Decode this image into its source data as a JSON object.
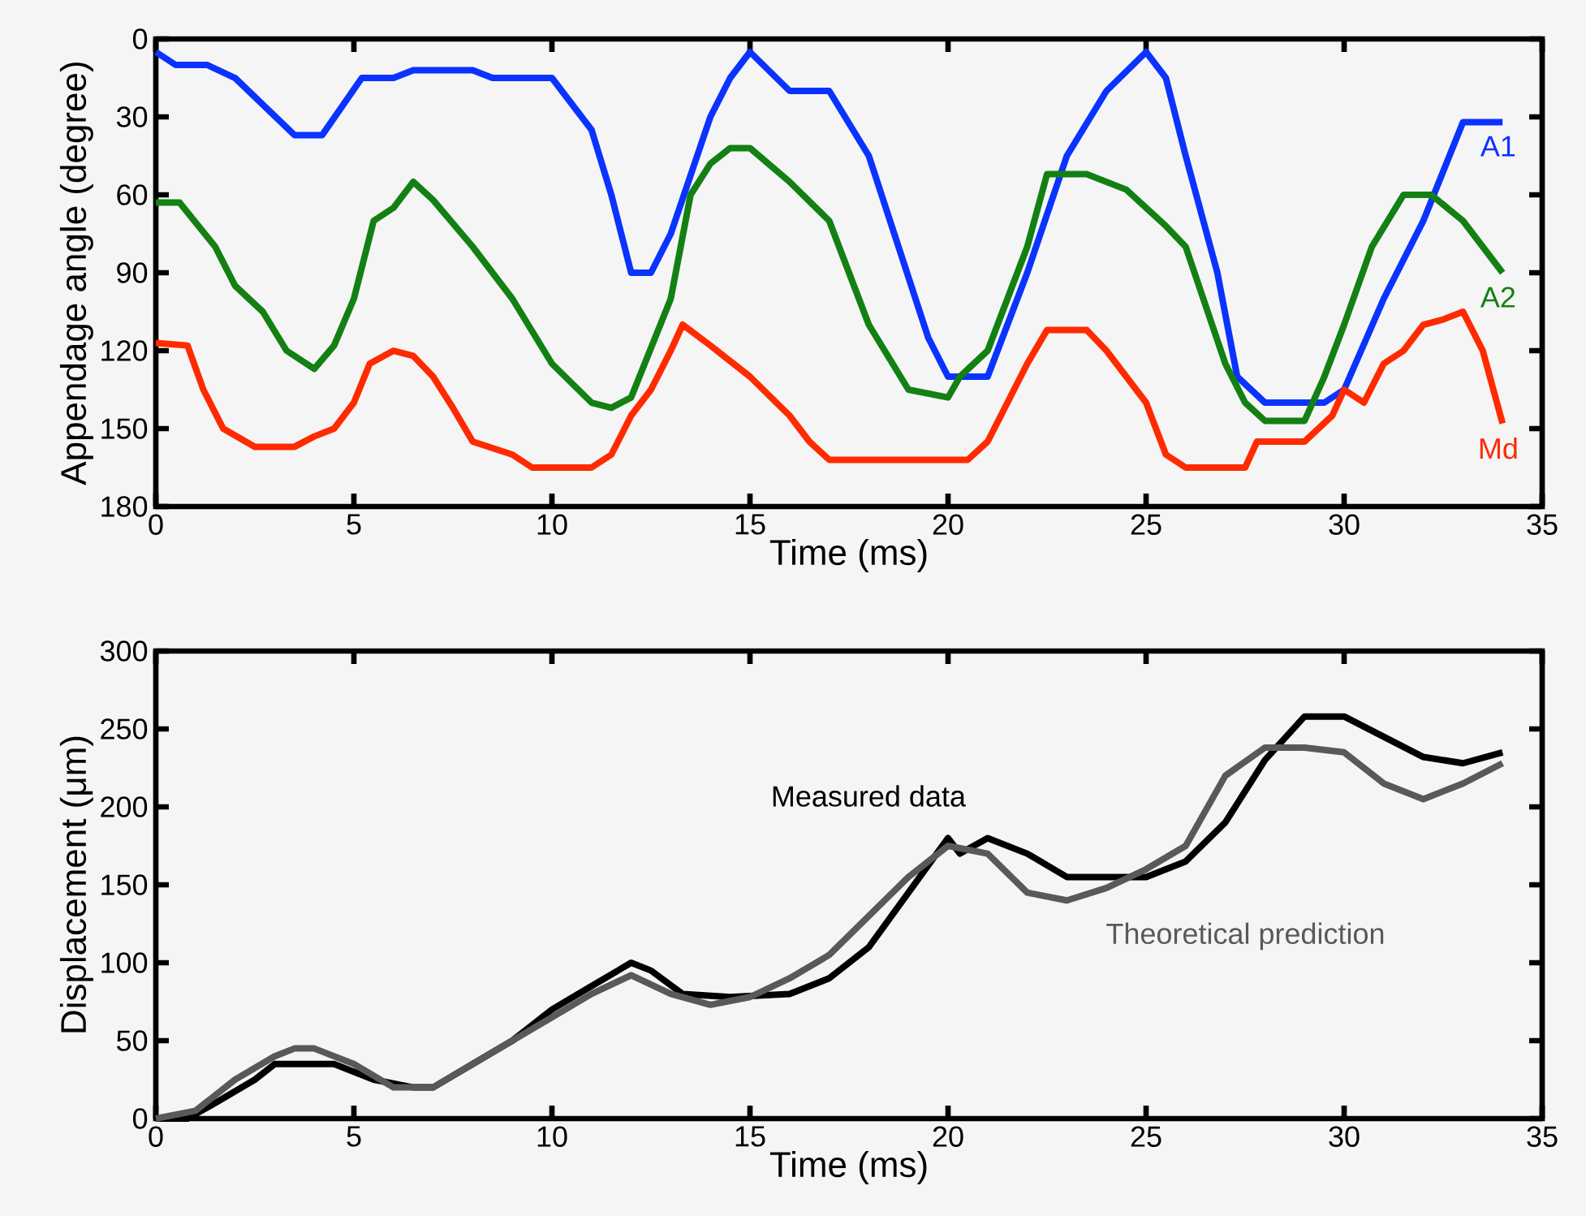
{
  "chart_data": [
    {
      "type": "line",
      "xlabel": "Time (ms)",
      "ylabel": "Appendage angle (degree)",
      "xlim": [
        0,
        35
      ],
      "xticks": [
        0,
        5,
        10,
        15,
        20,
        25,
        30,
        35
      ],
      "ylim": [
        180,
        0
      ],
      "yticks": [
        0,
        30,
        60,
        90,
        120,
        150,
        180
      ],
      "grid": false,
      "series": [
        {
          "name": "A1",
          "color": "#0a33ff",
          "x": [
            0,
            0.5,
            1.3,
            2,
            3.5,
            4.2,
            5.2,
            6,
            6.5,
            8,
            8.5,
            10,
            11,
            11.5,
            12,
            12.5,
            13,
            14,
            14.5,
            15,
            16,
            17,
            18,
            19.5,
            20,
            21,
            22,
            23,
            24,
            25,
            25.5,
            26,
            26.8,
            27.3,
            28,
            29,
            29.5,
            30,
            31,
            32,
            33,
            34
          ],
          "values": [
            5,
            10,
            10,
            15,
            37,
            37,
            15,
            15,
            12,
            12,
            15,
            15,
            35,
            60,
            90,
            90,
            75,
            30,
            15,
            5,
            20,
            20,
            45,
            115,
            130,
            130,
            90,
            45,
            20,
            5,
            15,
            45,
            90,
            130,
            140,
            140,
            140,
            135,
            100,
            70,
            32,
            32
          ]
        },
        {
          "name": "A2",
          "color": "#138013",
          "x": [
            0,
            0.6,
            1.5,
            2,
            2.7,
            3.3,
            4,
            4.5,
            5,
            5.5,
            6,
            6.5,
            7,
            8,
            9,
            10,
            11,
            11.5,
            12,
            13,
            13.5,
            14,
            14.5,
            15,
            16,
            17,
            17.5,
            18,
            19,
            20,
            20.3,
            21,
            22,
            22.5,
            23.5,
            24.5,
            25.5,
            26,
            27,
            27.5,
            28,
            29,
            29.5,
            30,
            30.7,
            31.5,
            32.2,
            33,
            33.5,
            34
          ],
          "values": [
            63,
            63,
            80,
            95,
            105,
            120,
            127,
            118,
            100,
            70,
            65,
            55,
            62,
            80,
            100,
            125,
            140,
            142,
            138,
            100,
            60,
            48,
            42,
            42,
            55,
            70,
            90,
            110,
            135,
            138,
            130,
            120,
            80,
            52,
            52,
            58,
            72,
            80,
            125,
            140,
            147,
            147,
            130,
            110,
            80,
            60,
            60,
            70,
            80,
            90
          ]
        },
        {
          "name": "Md",
          "color": "#ff2a00",
          "x": [
            0,
            0.8,
            1.2,
            1.7,
            2.5,
            3.5,
            4,
            4.5,
            5,
            5.4,
            6,
            6.5,
            7,
            7.5,
            8,
            9,
            9.5,
            11,
            11.5,
            12,
            12.5,
            13,
            13.3,
            14,
            15,
            16,
            16.5,
            17,
            19,
            20.5,
            21,
            21.5,
            22,
            22.5,
            23.5,
            24,
            25,
            25.5,
            26,
            27.5,
            27.8,
            29,
            29.7,
            30,
            30.5,
            31,
            31.5,
            32,
            32.5,
            33,
            33.5,
            34
          ],
          "values": [
            117,
            118,
            135,
            150,
            157,
            157,
            153,
            150,
            140,
            125,
            120,
            122,
            130,
            142,
            155,
            160,
            165,
            165,
            160,
            145,
            135,
            120,
            110,
            118,
            130,
            145,
            155,
            162,
            162,
            162,
            155,
            140,
            125,
            112,
            112,
            120,
            140,
            160,
            165,
            165,
            155,
            155,
            145,
            135,
            140,
            125,
            120,
            110,
            108,
            105,
            120,
            148
          ]
        }
      ]
    },
    {
      "type": "line",
      "xlabel": "Time (ms)",
      "ylabel": "Displacement (μm)",
      "xlim": [
        0,
        35
      ],
      "xticks": [
        0,
        5,
        10,
        15,
        20,
        25,
        30,
        35
      ],
      "ylim": [
        0,
        300
      ],
      "yticks": [
        0,
        50,
        100,
        150,
        200,
        250,
        300
      ],
      "grid": false,
      "series": [
        {
          "name": "Measured data",
          "color": "#000000",
          "x": [
            0,
            0.8,
            1.5,
            2.5,
            3,
            4.5,
            5.5,
            6.5,
            7,
            8,
            9,
            10,
            11,
            12,
            12.5,
            13.3,
            14.5,
            16,
            17,
            18,
            19,
            20,
            20.3,
            21,
            22,
            23,
            25,
            26,
            27,
            28,
            29,
            30,
            31,
            32,
            33,
            34
          ],
          "values": [
            0,
            0,
            10,
            25,
            35,
            35,
            25,
            20,
            20,
            35,
            50,
            70,
            85,
            100,
            95,
            80,
            78,
            80,
            90,
            110,
            145,
            180,
            170,
            180,
            170,
            155,
            155,
            165,
            190,
            230,
            258,
            258,
            245,
            232,
            228,
            235
          ]
        },
        {
          "name": "Theoretical prediction",
          "color": "#595959",
          "x": [
            0,
            1,
            2,
            3,
            3.5,
            4,
            5,
            6,
            7,
            8,
            9,
            10,
            11,
            12,
            13,
            14,
            15,
            16,
            17,
            18,
            19,
            20,
            21,
            22,
            23,
            24,
            25,
            26,
            27,
            28,
            29,
            30,
            31,
            32,
            33,
            34
          ],
          "values": [
            0,
            5,
            25,
            40,
            45,
            45,
            35,
            20,
            20,
            35,
            50,
            65,
            80,
            92,
            80,
            73,
            78,
            90,
            105,
            130,
            155,
            175,
            170,
            145,
            140,
            148,
            160,
            175,
            220,
            238,
            238,
            235,
            215,
            205,
            215,
            228
          ]
        }
      ]
    }
  ]
}
